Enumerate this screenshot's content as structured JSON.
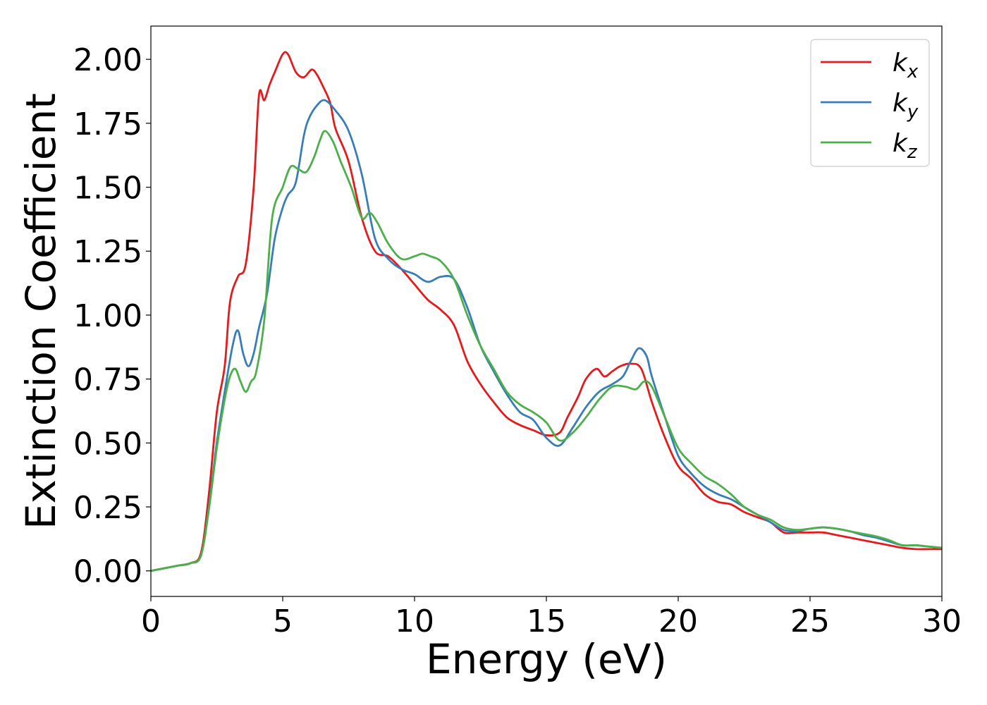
{
  "chart_data": {
    "type": "line",
    "title": "",
    "xlabel": "Energy (eV)",
    "ylabel": "Extinction Coefficient",
    "xlim": [
      0,
      30
    ],
    "ylim": [
      -0.1,
      2.13
    ],
    "xticks": [
      0,
      5,
      10,
      15,
      20,
      25,
      30
    ],
    "xtick_labels": [
      "0",
      "5",
      "10",
      "15",
      "20",
      "25",
      "30"
    ],
    "yticks": [
      0.0,
      0.25,
      0.5,
      0.75,
      1.0,
      1.25,
      1.5,
      1.75,
      2.0
    ],
    "ytick_labels": [
      "0.00",
      "0.25",
      "0.50",
      "0.75",
      "1.00",
      "1.25",
      "1.50",
      "1.75",
      "2.00"
    ],
    "grid": false,
    "legend_position": "top-right",
    "series": [
      {
        "name": "k_x",
        "legend_base": "k",
        "legend_sub": "x",
        "color": "#e41a1c",
        "x": [
          0,
          1,
          1.5,
          1.9,
          2.2,
          2.5,
          2.8,
          3.0,
          3.3,
          3.6,
          3.9,
          4.1,
          4.3,
          4.5,
          4.7,
          5.0,
          5.2,
          5.5,
          5.8,
          6.1,
          6.3,
          6.5,
          6.8,
          7.0,
          7.5,
          8.0,
          8.5,
          9.0,
          9.5,
          10.0,
          10.5,
          11.0,
          11.5,
          12.0,
          12.5,
          13.0,
          13.5,
          14.0,
          14.5,
          15.0,
          15.5,
          15.8,
          16.2,
          16.5,
          16.9,
          17.2,
          17.5,
          17.8,
          18.2,
          18.6,
          19.0,
          19.5,
          20.0,
          20.5,
          21.0,
          21.5,
          22.0,
          22.5,
          23.0,
          23.5,
          24.0,
          24.5,
          25.0,
          25.5,
          26.0,
          26.5,
          27.0,
          27.5,
          28.0,
          28.5,
          29.0,
          29.5,
          30.0
        ],
        "y": [
          0.0,
          0.02,
          0.03,
          0.07,
          0.3,
          0.62,
          0.8,
          1.05,
          1.15,
          1.2,
          1.5,
          1.86,
          1.84,
          1.9,
          1.95,
          2.02,
          2.02,
          1.95,
          1.93,
          1.96,
          1.94,
          1.9,
          1.83,
          1.73,
          1.6,
          1.38,
          1.25,
          1.23,
          1.18,
          1.12,
          1.06,
          1.02,
          0.96,
          0.82,
          0.73,
          0.66,
          0.6,
          0.57,
          0.55,
          0.53,
          0.54,
          0.6,
          0.68,
          0.75,
          0.79,
          0.76,
          0.78,
          0.8,
          0.81,
          0.79,
          0.66,
          0.52,
          0.41,
          0.36,
          0.3,
          0.27,
          0.26,
          0.23,
          0.21,
          0.19,
          0.15,
          0.15,
          0.15,
          0.15,
          0.14,
          0.13,
          0.12,
          0.11,
          0.1,
          0.09,
          0.085,
          0.085,
          0.085
        ]
      },
      {
        "name": "k_y",
        "legend_base": "k",
        "legend_sub": "y",
        "color": "#377eb8",
        "x": [
          0,
          1,
          1.5,
          1.9,
          2.2,
          2.5,
          2.8,
          3.1,
          3.3,
          3.5,
          3.7,
          3.9,
          4.1,
          4.4,
          4.7,
          5.0,
          5.2,
          5.5,
          5.8,
          6.0,
          6.3,
          6.6,
          7.0,
          7.5,
          8.0,
          8.5,
          9.0,
          9.5,
          10.0,
          10.5,
          11.0,
          11.5,
          12.0,
          12.5,
          13.0,
          13.5,
          14.0,
          14.5,
          15.0,
          15.5,
          16.0,
          16.5,
          17.0,
          17.5,
          17.9,
          18.2,
          18.5,
          18.8,
          19.0,
          19.5,
          20.0,
          20.5,
          21.0,
          21.5,
          22.0,
          22.5,
          23.0,
          23.5,
          24.0,
          24.5,
          25.0,
          25.5,
          26.0,
          26.5,
          27.0,
          27.5,
          28.0,
          28.5,
          29.0,
          29.5,
          30.0
        ],
        "y": [
          0.0,
          0.02,
          0.03,
          0.06,
          0.25,
          0.5,
          0.7,
          0.88,
          0.94,
          0.85,
          0.8,
          0.85,
          0.95,
          1.08,
          1.3,
          1.42,
          1.47,
          1.52,
          1.7,
          1.77,
          1.82,
          1.84,
          1.8,
          1.72,
          1.55,
          1.3,
          1.22,
          1.18,
          1.16,
          1.13,
          1.15,
          1.14,
          1.03,
          0.88,
          0.78,
          0.69,
          0.62,
          0.59,
          0.52,
          0.49,
          0.56,
          0.64,
          0.7,
          0.73,
          0.76,
          0.82,
          0.87,
          0.84,
          0.76,
          0.6,
          0.45,
          0.38,
          0.33,
          0.3,
          0.28,
          0.25,
          0.22,
          0.19,
          0.16,
          0.155,
          0.165,
          0.17,
          0.165,
          0.155,
          0.14,
          0.13,
          0.115,
          0.1,
          0.1,
          0.095,
          0.09
        ]
      },
      {
        "name": "k_z",
        "legend_base": "k",
        "legend_sub": "z",
        "color": "#4daf4a",
        "x": [
          0,
          1,
          1.5,
          1.9,
          2.2,
          2.5,
          2.8,
          3.0,
          3.2,
          3.4,
          3.6,
          3.8,
          4.0,
          4.3,
          4.6,
          5.0,
          5.3,
          5.6,
          5.9,
          6.2,
          6.4,
          6.6,
          6.9,
          7.2,
          7.6,
          8.0,
          8.3,
          8.6,
          9.0,
          9.5,
          10.0,
          10.3,
          10.6,
          11.0,
          11.5,
          12.0,
          12.5,
          13.0,
          13.5,
          14.0,
          14.5,
          15.0,
          15.5,
          16.0,
          16.5,
          17.0,
          17.5,
          18.0,
          18.4,
          18.7,
          19.0,
          19.5,
          20.0,
          20.5,
          21.0,
          21.5,
          22.0,
          22.5,
          23.0,
          23.5,
          24.0,
          24.5,
          25.0,
          25.5,
          26.0,
          26.5,
          27.0,
          27.5,
          28.0,
          28.5,
          29.0,
          29.5,
          30.0
        ],
        "y": [
          0.0,
          0.02,
          0.03,
          0.06,
          0.24,
          0.48,
          0.67,
          0.76,
          0.79,
          0.74,
          0.7,
          0.74,
          0.78,
          0.98,
          1.38,
          1.5,
          1.58,
          1.57,
          1.56,
          1.62,
          1.68,
          1.72,
          1.68,
          1.6,
          1.5,
          1.38,
          1.4,
          1.36,
          1.28,
          1.22,
          1.23,
          1.24,
          1.23,
          1.21,
          1.14,
          1.0,
          0.88,
          0.79,
          0.7,
          0.65,
          0.62,
          0.58,
          0.51,
          0.54,
          0.6,
          0.67,
          0.72,
          0.72,
          0.71,
          0.74,
          0.72,
          0.6,
          0.48,
          0.42,
          0.37,
          0.34,
          0.3,
          0.25,
          0.22,
          0.2,
          0.17,
          0.16,
          0.165,
          0.17,
          0.165,
          0.155,
          0.145,
          0.135,
          0.12,
          0.1,
          0.1,
          0.095,
          0.09
        ]
      }
    ]
  }
}
